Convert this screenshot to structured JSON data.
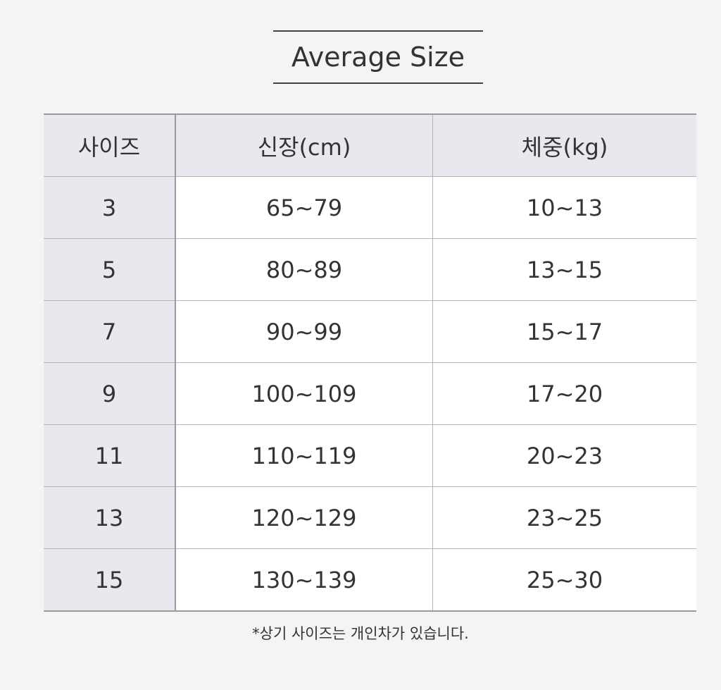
{
  "title": "Average Size",
  "table": {
    "headers": [
      "사이즈",
      "신장(cm)",
      "체중(kg)"
    ],
    "rows": [
      [
        "3",
        "65~79",
        "10~13"
      ],
      [
        "5",
        "80~89",
        "13~15"
      ],
      [
        "7",
        "90~99",
        "15~17"
      ],
      [
        "9",
        "100~109",
        "17~20"
      ],
      [
        "11",
        "110~119",
        "20~23"
      ],
      [
        "13",
        "120~129",
        "23~25"
      ],
      [
        "15",
        "130~139",
        "25~30"
      ]
    ]
  },
  "note": "*상기 사이즈는 개인차가 있습니다.",
  "colors": {
    "header_bg": "#e7e9ef",
    "page_bg": "#f4f4f5",
    "cell_bg": "#ffffff"
  }
}
